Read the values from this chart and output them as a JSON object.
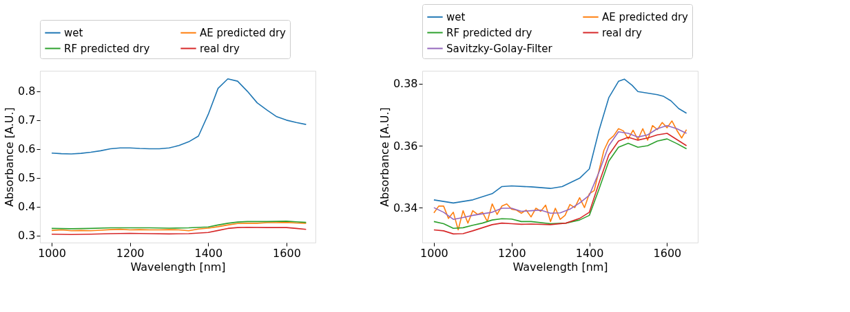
{
  "chart_data": [
    {
      "type": "line",
      "xlabel": "Wavelength [nm]",
      "ylabel": "Absorbance [A.U.]",
      "xlim": [
        970,
        1674
      ],
      "ylim": [
        0.276,
        0.871
      ],
      "xticks": [
        1000,
        1200,
        1400,
        1600
      ],
      "yticks": [
        0.3,
        0.4,
        0.5,
        0.6,
        0.7,
        0.8
      ],
      "grid": false,
      "legend": "top",
      "line_style": "solid",
      "marker": "none",
      "series": [
        {
          "name": "wet",
          "color": "#1f77b4",
          "x": [
            1000,
            1025,
            1050,
            1075,
            1100,
            1125,
            1150,
            1175,
            1200,
            1225,
            1250,
            1275,
            1300,
            1325,
            1350,
            1375,
            1400,
            1425,
            1450,
            1475,
            1500,
            1525,
            1550,
            1575,
            1600,
            1625,
            1650
          ],
          "values": [
            0.586,
            0.584,
            0.583,
            0.585,
            0.589,
            0.594,
            0.601,
            0.604,
            0.604,
            0.602,
            0.601,
            0.601,
            0.604,
            0.612,
            0.625,
            0.645,
            0.72,
            0.81,
            0.843,
            0.835,
            0.8,
            0.76,
            0.735,
            0.712,
            0.7,
            0.692,
            0.685
          ]
        },
        {
          "name": "AE predicted dry",
          "color": "#ff7f0e",
          "x": [
            1000,
            1025,
            1050,
            1075,
            1100,
            1125,
            1150,
            1175,
            1200,
            1225,
            1250,
            1275,
            1300,
            1325,
            1350,
            1375,
            1400,
            1425,
            1450,
            1475,
            1500,
            1525,
            1550,
            1575,
            1600,
            1625,
            1650
          ],
          "values": [
            0.318,
            0.32,
            0.317,
            0.318,
            0.317,
            0.319,
            0.321,
            0.322,
            0.32,
            0.321,
            0.32,
            0.32,
            0.321,
            0.32,
            0.317,
            0.323,
            0.326,
            0.331,
            0.337,
            0.342,
            0.343,
            0.343,
            0.345,
            0.345,
            0.346,
            0.344,
            0.343
          ]
        },
        {
          "name": "RF predicted dry",
          "color": "#2ca02c",
          "x": [
            1000,
            1050,
            1100,
            1150,
            1200,
            1250,
            1300,
            1350,
            1400,
            1425,
            1450,
            1475,
            1500,
            1550,
            1600,
            1625,
            1650
          ],
          "values": [
            0.325,
            0.324,
            0.325,
            0.327,
            0.327,
            0.327,
            0.326,
            0.327,
            0.33,
            0.337,
            0.343,
            0.347,
            0.349,
            0.349,
            0.35,
            0.348,
            0.346
          ]
        },
        {
          "name": "real dry",
          "color": "#d62728",
          "x": [
            1000,
            1050,
            1100,
            1150,
            1200,
            1250,
            1300,
            1350,
            1400,
            1425,
            1450,
            1475,
            1500,
            1550,
            1600,
            1625,
            1650
          ],
          "values": [
            0.305,
            0.304,
            0.305,
            0.307,
            0.308,
            0.307,
            0.306,
            0.307,
            0.311,
            0.318,
            0.325,
            0.328,
            0.329,
            0.328,
            0.328,
            0.325,
            0.322
          ]
        }
      ]
    },
    {
      "type": "line",
      "xlabel": "Wavelength [nm]",
      "ylabel": "Absorbance [A.U.]",
      "xlim": [
        970,
        1679
      ],
      "ylim": [
        0.3287,
        0.3842
      ],
      "xticks": [
        1000,
        1200,
        1400,
        1600
      ],
      "yticks": [
        0.34,
        0.36,
        0.38
      ],
      "grid": false,
      "legend": "top",
      "line_style": "solid",
      "marker": "none",
      "series": [
        {
          "name": "wet",
          "color": "#1f77b4",
          "x": [
            1000,
            1050,
            1100,
            1150,
            1175,
            1200,
            1250,
            1300,
            1330,
            1375,
            1400,
            1425,
            1450,
            1475,
            1490,
            1510,
            1525,
            1550,
            1575,
            1590,
            1610,
            1630,
            1650
          ],
          "values": [
            0.3425,
            0.3415,
            0.3425,
            0.3445,
            0.3468,
            0.347,
            0.3467,
            0.3462,
            0.3468,
            0.3495,
            0.3525,
            0.365,
            0.3755,
            0.3808,
            0.3815,
            0.3795,
            0.3775,
            0.377,
            0.3765,
            0.376,
            0.3745,
            0.372,
            0.3705
          ]
        },
        {
          "name": "AE predicted dry",
          "color": "#ff7f0e",
          "x": [
            1000,
            1012.5,
            1025,
            1037.5,
            1050,
            1062.5,
            1075,
            1087.5,
            1100,
            1112.5,
            1125,
            1137.5,
            1150,
            1162.5,
            1175,
            1187.5,
            1200,
            1212.5,
            1225,
            1237.5,
            1250,
            1262.5,
            1275,
            1287.5,
            1300,
            1312.5,
            1325,
            1337.5,
            1350,
            1362.5,
            1375,
            1387.5,
            1400,
            1412.5,
            1425,
            1437.5,
            1450,
            1462.5,
            1475,
            1487.5,
            1500,
            1512.5,
            1525,
            1537.5,
            1550,
            1562.5,
            1575,
            1587.5,
            1600,
            1612.5,
            1625,
            1637.5,
            1650
          ],
          "values": [
            0.3383,
            0.3405,
            0.3405,
            0.3365,
            0.3385,
            0.3328,
            0.339,
            0.335,
            0.339,
            0.3378,
            0.3385,
            0.3355,
            0.3412,
            0.3378,
            0.3405,
            0.3412,
            0.3395,
            0.3392,
            0.3382,
            0.3392,
            0.337,
            0.3398,
            0.3388,
            0.3408,
            0.3355,
            0.3398,
            0.3362,
            0.3375,
            0.341,
            0.34,
            0.3432,
            0.34,
            0.3445,
            0.3455,
            0.352,
            0.3585,
            0.3618,
            0.3632,
            0.3655,
            0.3648,
            0.3622,
            0.365,
            0.362,
            0.3655,
            0.3618,
            0.3665,
            0.3652,
            0.3675,
            0.3658,
            0.368,
            0.365,
            0.3625,
            0.3652
          ]
        },
        {
          "name": "RF predicted dry",
          "color": "#2ca02c",
          "x": [
            1000,
            1025,
            1050,
            1075,
            1100,
            1125,
            1150,
            1175,
            1200,
            1225,
            1250,
            1300,
            1340,
            1375,
            1400,
            1425,
            1450,
            1475,
            1500,
            1525,
            1550,
            1575,
            1600,
            1625,
            1650
          ],
          "values": [
            0.3355,
            0.3348,
            0.3333,
            0.3335,
            0.3343,
            0.335,
            0.336,
            0.3364,
            0.3363,
            0.3355,
            0.3355,
            0.3348,
            0.335,
            0.336,
            0.3375,
            0.346,
            0.355,
            0.3595,
            0.3608,
            0.3595,
            0.36,
            0.3615,
            0.3622,
            0.3607,
            0.359
          ]
        },
        {
          "name": "real dry",
          "color": "#d62728",
          "x": [
            1000,
            1025,
            1050,
            1075,
            1100,
            1125,
            1150,
            1175,
            1200,
            1225,
            1250,
            1300,
            1340,
            1375,
            1400,
            1425,
            1450,
            1475,
            1500,
            1525,
            1550,
            1575,
            1600,
            1625,
            1650
          ],
          "values": [
            0.3328,
            0.3325,
            0.3315,
            0.3316,
            0.3325,
            0.3335,
            0.3345,
            0.335,
            0.3348,
            0.3346,
            0.3347,
            0.3345,
            0.335,
            0.3365,
            0.3385,
            0.348,
            0.357,
            0.3615,
            0.3627,
            0.3618,
            0.3625,
            0.3635,
            0.364,
            0.362,
            0.36
          ]
        },
        {
          "name": "Savitzky-Golay-Filter",
          "color": "#9467bd",
          "x": [
            1000,
            1025,
            1050,
            1075,
            1100,
            1125,
            1150,
            1175,
            1200,
            1225,
            1250,
            1275,
            1300,
            1325,
            1350,
            1375,
            1400,
            1425,
            1450,
            1475,
            1500,
            1525,
            1550,
            1575,
            1600,
            1625,
            1650
          ],
          "values": [
            0.34,
            0.3385,
            0.3362,
            0.3368,
            0.3375,
            0.338,
            0.3385,
            0.3398,
            0.3398,
            0.3388,
            0.339,
            0.3392,
            0.3382,
            0.3383,
            0.3395,
            0.3415,
            0.344,
            0.3515,
            0.36,
            0.3645,
            0.364,
            0.3628,
            0.3635,
            0.3655,
            0.3665,
            0.3655,
            0.364
          ]
        }
      ]
    }
  ]
}
